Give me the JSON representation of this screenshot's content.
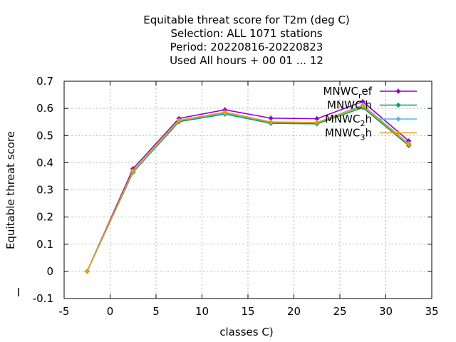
{
  "chart_data": {
    "type": "line",
    "title_lines": [
      "Equitable threat score  for T2m (deg C)",
      "Selection: ALL   1071 stations",
      "Period: 20220816-20220823",
      "Used  All hours  + 00 01 ... 12"
    ],
    "xlabel": "classes C)",
    "ylabel": "Equitable threat score",
    "xlim": [
      -5,
      35
    ],
    "ylim": [
      -0.1,
      0.7
    ],
    "xticks": [
      "-5",
      "0",
      "5",
      "10",
      "15",
      "20",
      "25",
      "30",
      "35"
    ],
    "yticks": [
      "-0.1",
      "0",
      "0.1",
      "0.2",
      "0.3",
      "0.4",
      "0.5",
      "0.6",
      "0.7"
    ],
    "grid": true,
    "legend_position": "top-right",
    "x": [
      -2.5,
      2.5,
      7.5,
      12.5,
      17.5,
      22.5,
      27.5,
      32.5
    ],
    "series": [
      {
        "name_main": "MNWC",
        "name_sub": "r",
        "name_tail": "ef",
        "color": "#9400d3",
        "values": [
          0.0,
          0.378,
          0.563,
          0.595,
          0.564,
          0.562,
          0.625,
          0.48
        ]
      },
      {
        "name_main": "MNWC",
        "name_sub": "",
        "name_tail": "h",
        "color": "#009e73",
        "values": [
          0.0,
          0.365,
          0.551,
          0.579,
          0.545,
          0.543,
          0.603,
          0.463
        ]
      },
      {
        "name_main": "MNWC",
        "name_sub": "2",
        "name_tail": "h",
        "color": "#56b4e9",
        "values": [
          0.0,
          0.368,
          0.555,
          0.583,
          0.549,
          0.547,
          0.612,
          0.47
        ]
      },
      {
        "name_main": "MNWC",
        "name_sub": "3",
        "name_tail": "h",
        "color": "#e69f00",
        "values": [
          0.0,
          0.37,
          0.556,
          0.586,
          0.55,
          0.548,
          0.608,
          0.468
        ]
      }
    ]
  }
}
